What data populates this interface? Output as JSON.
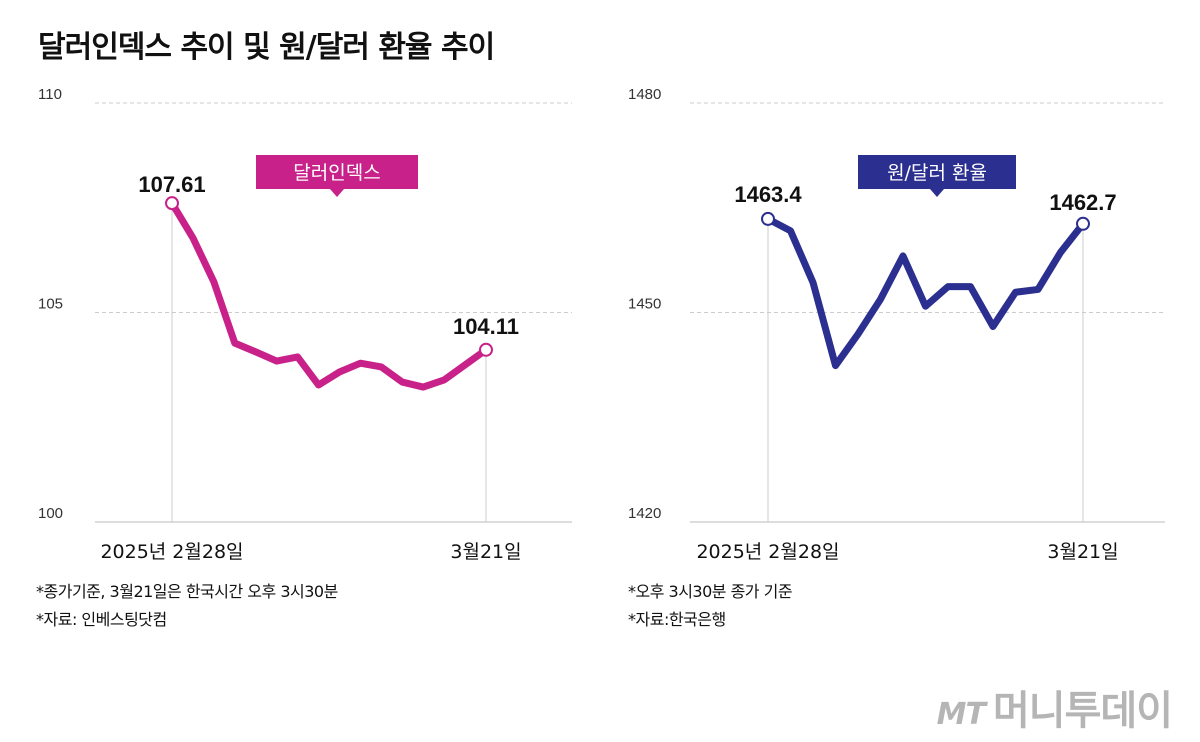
{
  "title": "달러인덱스 추이 및 원/달러 환율 추이",
  "chart_data": [
    {
      "type": "line",
      "series": [
        {
          "name": "달러인덱스",
          "color": "#c8228a",
          "values": [
            107.61,
            106.78,
            105.73,
            104.27,
            104.06,
            103.84,
            103.94,
            103.27,
            103.58,
            103.79,
            103.7,
            103.34,
            103.22,
            103.39,
            103.75,
            104.11
          ]
        }
      ],
      "ylim": [
        100,
        110
      ],
      "yticks": [
        "100",
        "105",
        "110"
      ],
      "xtick_labels": [
        "2025년 2월28일",
        "3월21일"
      ],
      "annotations": {
        "start": "107.61",
        "end": "104.11"
      },
      "grid": "dashed horizontal",
      "notes": [
        "*종가기준, 3월21일은 한국시간 오후 3시30분",
        "*자료: 인베스팅닷컴"
      ]
    },
    {
      "type": "line",
      "series": [
        {
          "name": "원/달러 환율",
          "color": "#2b2f8f",
          "values": [
            1463.4,
            1461.7,
            1454.3,
            1442.4,
            1446.9,
            1451.9,
            1458.1,
            1450.9,
            1453.7,
            1453.7,
            1448.0,
            1452.9,
            1453.3,
            1458.6,
            1462.7
          ]
        }
      ],
      "ylim": [
        1420,
        1480
      ],
      "yticks": [
        "1420",
        "1450",
        "1480"
      ],
      "xtick_labels": [
        "2025년 2월28일",
        "3월21일"
      ],
      "annotations": {
        "start": "1463.4",
        "end": "1462.7"
      },
      "grid": "dashed horizontal",
      "notes": [
        "*오후 3시30분 종가 기준",
        "*자료:한국은행"
      ]
    }
  ],
  "logo": {
    "mt": "MT",
    "name": "머니투데이"
  }
}
